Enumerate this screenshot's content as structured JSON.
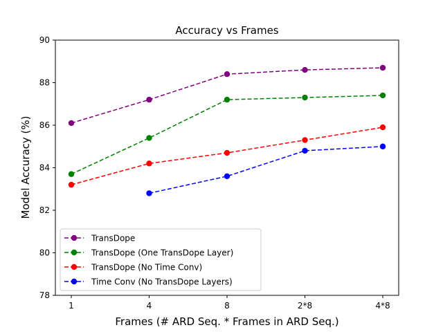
{
  "chart_data": {
    "type": "line",
    "title": "Accuracy vs Frames",
    "xlabel": "Frames (# ARD Seq. * Frames in ARD Seq.)",
    "ylabel": "Model Accuracy (%)",
    "categories": [
      "1",
      "4",
      "8",
      "2*8",
      "4*8"
    ],
    "ylim": [
      78,
      90
    ],
    "yticks": [
      78,
      80,
      82,
      84,
      86,
      88,
      90
    ],
    "grid": false,
    "legend_position": "lower-left",
    "series": [
      {
        "name": "TransDope",
        "color": "#800080",
        "values": [
          86.1,
          87.2,
          88.4,
          88.6,
          88.7
        ]
      },
      {
        "name": "TransDope (One TransDope Layer)",
        "color": "#008000",
        "values": [
          83.7,
          85.4,
          87.2,
          87.3,
          87.4
        ]
      },
      {
        "name": "TransDope (No Time Conv)",
        "color": "#ff0000",
        "values": [
          83.2,
          84.2,
          84.7,
          85.3,
          85.9
        ]
      },
      {
        "name": "Time Conv (No TransDope Layers)",
        "color": "#0000ff",
        "values": [
          null,
          82.8,
          83.6,
          84.8,
          85.0
        ]
      }
    ]
  }
}
